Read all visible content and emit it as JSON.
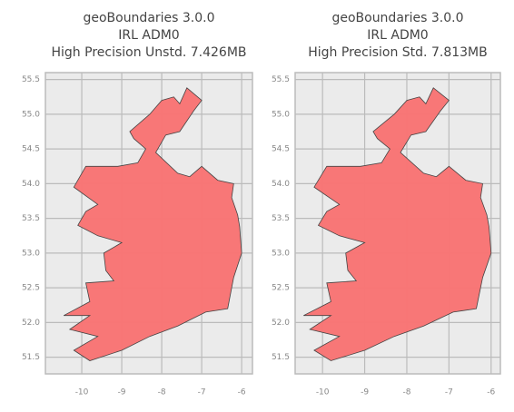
{
  "chart_data": [
    {
      "type": "map",
      "title": [
        "geoBoundaries 3.0.0",
        "IRL ADM0",
        "High Precision Unstd. 7.426MB"
      ],
      "xlim": [
        -10.91,
        -5.73
      ],
      "ylim": [
        51.26,
        55.6
      ],
      "xticks": [
        -10,
        -9,
        -8,
        -7,
        -6
      ],
      "yticks": [
        51.5,
        52.0,
        52.5,
        53.0,
        53.5,
        54.0,
        54.5,
        55.0,
        55.5
      ],
      "grid": true,
      "color": "#f87474",
      "x": [
        -7.37,
        -7.0,
        -7.2,
        -7.55,
        -7.9,
        -8.15,
        -7.6,
        -7.3,
        -7.0,
        -6.6,
        -6.2,
        -6.25,
        -6.1,
        -6.05,
        -6.0,
        -6.2,
        -6.35,
        -6.9,
        -7.6,
        -8.3,
        -9.0,
        -9.8,
        -10.2,
        -9.6,
        -10.3,
        -9.8,
        -10.45,
        -9.8,
        -9.9,
        -9.2,
        -9.4,
        -9.45,
        -9.0,
        -9.6,
        -10.1,
        -9.9,
        -9.6,
        -10.2,
        -9.9,
        -9.1,
        -8.6,
        -8.4,
        -8.7,
        -8.8,
        -8.3,
        -8.0,
        -7.7,
        -7.55
      ],
      "y": [
        55.38,
        55.2,
        55.05,
        54.75,
        54.7,
        54.45,
        54.15,
        54.1,
        54.25,
        54.05,
        54.0,
        53.8,
        53.55,
        53.38,
        53.0,
        52.65,
        52.2,
        52.15,
        51.95,
        51.8,
        51.6,
        51.45,
        51.6,
        51.8,
        51.9,
        52.1,
        52.1,
        52.3,
        52.57,
        52.6,
        52.75,
        53.0,
        53.15,
        53.25,
        53.4,
        53.6,
        53.7,
        53.95,
        54.25,
        54.25,
        54.3,
        54.5,
        54.65,
        54.75,
        55.0,
        55.2,
        55.25,
        55.15
      ]
    },
    {
      "type": "map",
      "title": [
        "geoBoundaries 3.0.0",
        "IRL ADM0",
        "High Precision Std. 7.813MB"
      ],
      "xlim": [
        -10.65,
        -5.78
      ],
      "ylim": [
        51.26,
        55.6
      ],
      "xticks": [
        -10,
        -9,
        -8,
        -7,
        -6
      ],
      "yticks": [
        51.5,
        52.0,
        52.5,
        53.0,
        53.5,
        54.0,
        54.5,
        55.0,
        55.5
      ],
      "grid": true,
      "color": "#f87474",
      "x": [
        -7.37,
        -7.0,
        -7.2,
        -7.55,
        -7.9,
        -8.15,
        -7.6,
        -7.3,
        -7.0,
        -6.6,
        -6.2,
        -6.25,
        -6.1,
        -6.05,
        -6.0,
        -6.2,
        -6.35,
        -6.9,
        -7.6,
        -8.3,
        -9.0,
        -9.8,
        -10.2,
        -9.6,
        -10.3,
        -9.8,
        -10.45,
        -9.8,
        -9.9,
        -9.2,
        -9.4,
        -9.45,
        -9.0,
        -9.6,
        -10.1,
        -9.9,
        -9.6,
        -10.2,
        -9.9,
        -9.1,
        -8.6,
        -8.4,
        -8.7,
        -8.8,
        -8.3,
        -8.0,
        -7.7,
        -7.55
      ],
      "y": [
        55.38,
        55.2,
        55.05,
        54.75,
        54.7,
        54.45,
        54.15,
        54.1,
        54.25,
        54.05,
        54.0,
        53.8,
        53.55,
        53.38,
        53.0,
        52.65,
        52.2,
        52.15,
        51.95,
        51.8,
        51.6,
        51.45,
        51.6,
        51.8,
        51.9,
        52.1,
        52.1,
        52.3,
        52.57,
        52.6,
        52.75,
        53.0,
        53.15,
        53.25,
        53.4,
        53.6,
        53.7,
        53.95,
        54.25,
        54.25,
        54.3,
        54.5,
        54.65,
        54.75,
        55.0,
        55.2,
        55.25,
        55.15
      ]
    }
  ]
}
